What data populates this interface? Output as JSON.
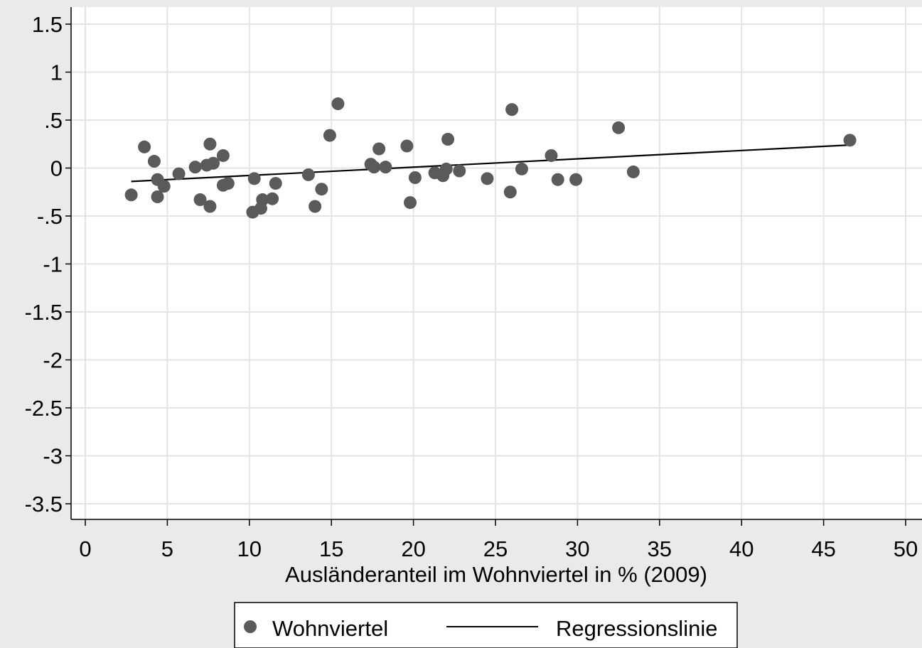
{
  "chart_data": {
    "type": "scatter",
    "title": "",
    "xlabel": "Ausländeranteil im Wohnviertel in % (2009)",
    "ylabel": "",
    "xlim": [
      0,
      50
    ],
    "ylim": [
      -3.5,
      1.5
    ],
    "xticks": [
      0,
      5,
      10,
      15,
      20,
      25,
      30,
      35,
      40,
      45,
      50
    ],
    "xtick_labels": [
      "0",
      "5",
      "10",
      "15",
      "20",
      "25",
      "30",
      "35",
      "40",
      "45",
      "50"
    ],
    "yticks": [
      1.5,
      1,
      0.5,
      0,
      -0.5,
      -1,
      -1.5,
      -2,
      -2.5,
      -3,
      -3.5
    ],
    "ytick_labels": [
      "1.5",
      "1",
      ".5",
      "0",
      "-.5",
      "-1",
      "-1.5",
      "-2",
      "-2.5",
      "-3",
      "-3.5"
    ],
    "grid": true,
    "legend_position": "bottom",
    "colors": {
      "marker": "#5a5a5a",
      "line": "#000000",
      "background": "#eaeaea",
      "plot_area": "#ffffff",
      "grid": "#e4e4e4"
    },
    "series": [
      {
        "name": "Wohnviertel",
        "type": "scatter",
        "points": [
          [
            2.8,
            -0.28
          ],
          [
            3.6,
            0.22
          ],
          [
            4.2,
            0.07
          ],
          [
            4.4,
            -0.12
          ],
          [
            4.4,
            -0.3
          ],
          [
            4.8,
            -0.19
          ],
          [
            5.7,
            -0.06
          ],
          [
            6.7,
            0.01
          ],
          [
            7.0,
            -0.33
          ],
          [
            7.4,
            0.03
          ],
          [
            7.6,
            0.25
          ],
          [
            7.6,
            -0.4
          ],
          [
            7.8,
            0.05
          ],
          [
            8.4,
            0.13
          ],
          [
            8.4,
            -0.18
          ],
          [
            8.7,
            -0.16
          ],
          [
            10.2,
            -0.46
          ],
          [
            10.3,
            -0.11
          ],
          [
            10.7,
            -0.42
          ],
          [
            10.8,
            -0.33
          ],
          [
            11.4,
            -0.32
          ],
          [
            11.6,
            -0.16
          ],
          [
            13.6,
            -0.07
          ],
          [
            14.0,
            -0.4
          ],
          [
            14.4,
            -0.22
          ],
          [
            14.9,
            0.34
          ],
          [
            15.4,
            0.67
          ],
          [
            17.4,
            0.04
          ],
          [
            17.6,
            0.01
          ],
          [
            17.9,
            0.2
          ],
          [
            18.3,
            0.01
          ],
          [
            19.6,
            0.23
          ],
          [
            19.8,
            -0.36
          ],
          [
            20.1,
            -0.1
          ],
          [
            21.3,
            -0.05
          ],
          [
            21.8,
            -0.08
          ],
          [
            22.0,
            -0.01
          ],
          [
            22.1,
            0.3
          ],
          [
            22.8,
            -0.03
          ],
          [
            24.5,
            -0.11
          ],
          [
            25.9,
            -0.25
          ],
          [
            26.0,
            0.61
          ],
          [
            26.6,
            -0.01
          ],
          [
            28.4,
            0.13
          ],
          [
            28.8,
            -0.12
          ],
          [
            29.9,
            -0.12
          ],
          [
            32.5,
            0.42
          ],
          [
            33.4,
            -0.04
          ],
          [
            46.6,
            0.29
          ]
        ]
      },
      {
        "name": "Regressionslinie",
        "type": "line",
        "points": [
          [
            2.8,
            -0.14
          ],
          [
            46.6,
            0.24
          ]
        ]
      }
    ]
  }
}
